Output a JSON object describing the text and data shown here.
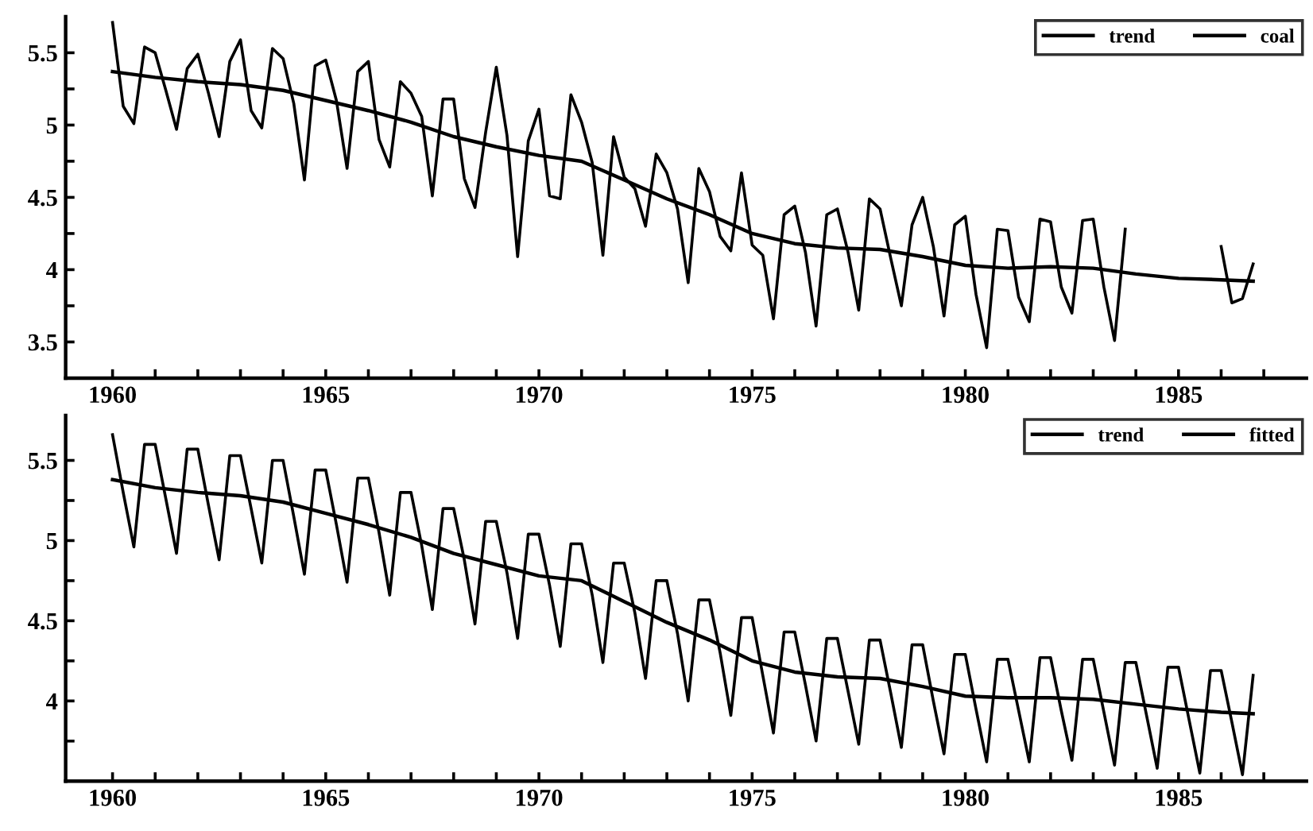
{
  "chart_data": [
    {
      "type": "line",
      "x": [
        1960,
        1960.25,
        1960.5,
        1960.75,
        1961,
        1961.25,
        1961.5,
        1961.75,
        1962,
        1962.25,
        1962.5,
        1962.75,
        1963,
        1963.25,
        1963.5,
        1963.75,
        1964,
        1964.25,
        1964.5,
        1964.75,
        1965,
        1965.25,
        1965.5,
        1965.75,
        1966,
        1966.25,
        1966.5,
        1966.75,
        1967,
        1967.25,
        1967.5,
        1967.75,
        1968,
        1968.25,
        1968.5,
        1968.75,
        1969,
        1969.25,
        1969.5,
        1969.75,
        1970,
        1970.25,
        1970.5,
        1970.75,
        1971,
        1971.25,
        1971.5,
        1971.75,
        1972,
        1972.25,
        1972.5,
        1972.75,
        1973,
        1973.25,
        1973.5,
        1973.75,
        1974,
        1974.25,
        1974.5,
        1974.75,
        1975,
        1975.25,
        1975.5,
        1975.75,
        1976,
        1976.25,
        1976.5,
        1976.75,
        1977,
        1977.25,
        1977.5,
        1977.75,
        1978,
        1978.25,
        1978.5,
        1978.75,
        1979,
        1979.25,
        1979.5,
        1979.75,
        1980,
        1980.25,
        1980.5,
        1980.75,
        1981,
        1981.25,
        1981.5,
        1981.75,
        1982,
        1982.25,
        1982.5,
        1982.75,
        1983,
        1983.25,
        1983.5,
        1983.75,
        1984,
        1984.25,
        1984.5,
        1984.75,
        1985,
        1985.25,
        1985.5,
        1985.75,
        1986,
        1986.25,
        1986.5,
        1986.75
      ],
      "series": [
        {
          "name": "trend",
          "color": "#000000",
          "x": [
            1960,
            1961,
            1962,
            1963,
            1964,
            1965,
            1966,
            1967,
            1968,
            1969,
            1970,
            1971,
            1972,
            1973,
            1974,
            1975,
            1976,
            1977,
            1978,
            1979,
            1980,
            1981,
            1982,
            1983,
            1984,
            1985,
            1986,
            1986.75
          ],
          "values": [
            5.37,
            5.33,
            5.3,
            5.28,
            5.24,
            5.17,
            5.1,
            5.02,
            4.92,
            4.85,
            4.79,
            4.75,
            4.62,
            4.49,
            4.38,
            4.25,
            4.18,
            4.15,
            4.14,
            4.09,
            4.03,
            4.01,
            4.02,
            4.01,
            3.97,
            3.94,
            3.93,
            3.92
          ]
        },
        {
          "name": "coal",
          "color": "#000000",
          "values": [
            5.71,
            5.13,
            5.01,
            5.54,
            5.5,
            5.24,
            4.97,
            5.39,
            5.49,
            5.22,
            4.92,
            5.44,
            5.59,
            5.1,
            4.98,
            5.53,
            5.46,
            5.15,
            4.62,
            5.41,
            5.45,
            5.17,
            4.7,
            5.37,
            5.44,
            4.9,
            4.71,
            5.3,
            5.22,
            5.06,
            4.51,
            5.18,
            5.18,
            4.63,
            4.43,
            4.95,
            5.4,
            4.93,
            4.09,
            4.89,
            5.11,
            4.51,
            4.49,
            5.21,
            5.02,
            4.74,
            4.1,
            4.92,
            4.64,
            4.56,
            4.3,
            4.8,
            4.67,
            4.42,
            3.91,
            4.7,
            4.54,
            4.23,
            4.13,
            4.67,
            4.17,
            4.1,
            3.66,
            4.38,
            4.44,
            4.12,
            3.61,
            4.38,
            4.42,
            4.12,
            3.72,
            4.49,
            4.42,
            4.08,
            3.75,
            4.31,
            4.5,
            4.16,
            3.68,
            4.31,
            4.37,
            3.83,
            3.46,
            4.28,
            4.27,
            3.81,
            3.64,
            4.35,
            4.33,
            3.88,
            3.7,
            4.34,
            4.35,
            3.88,
            3.51,
            4.28,
            null,
            null,
            null,
            null,
            null,
            null,
            null,
            null,
            4.16,
            3.77,
            3.8,
            4.04
          ]
        }
      ],
      "xlim": [
        1958.9,
        1988
      ],
      "ylim": [
        3.25,
        5.75
      ],
      "xticks": [
        1960,
        {
          "value": 1961,
          "label": null
        },
        {
          "value": 1962,
          "label": null
        },
        {
          "value": 1963,
          "label": null
        },
        {
          "value": 1964,
          "label": null
        },
        1965,
        {
          "value": 1966,
          "label": null
        },
        {
          "value": 1967,
          "label": null
        },
        {
          "value": 1968,
          "label": null
        },
        {
          "value": 1969,
          "label": null
        },
        1970,
        {
          "value": 1971,
          "label": null
        },
        {
          "value": 1972,
          "label": null
        },
        {
          "value": 1973,
          "label": null
        },
        {
          "value": 1974,
          "label": null
        },
        1975,
        {
          "value": 1976,
          "label": null
        },
        {
          "value": 1977,
          "label": null
        },
        {
          "value": 1978,
          "label": null
        },
        {
          "value": 1979,
          "label": null
        },
        1980,
        {
          "value": 1981,
          "label": null
        },
        {
          "value": 1982,
          "label": null
        },
        {
          "value": 1983,
          "label": null
        },
        {
          "value": 1984,
          "label": null
        },
        1985,
        {
          "value": 1986,
          "label": null
        },
        {
          "value": 1987,
          "label": null
        }
      ],
      "yticks": [
        3.5,
        {
          "value": 3.75,
          "label": null
        },
        4,
        {
          "value": 4.25,
          "label": null
        },
        4.5,
        {
          "value": 4.75,
          "label": null
        },
        5,
        {
          "value": 5.25,
          "label": null
        },
        5.5
      ],
      "legend": "top right"
    },
    {
      "type": "line",
      "x": [
        1960,
        1960.25,
        1960.5,
        1960.75,
        1961,
        1961.25,
        1961.5,
        1961.75,
        1962,
        1962.25,
        1962.5,
        1962.75,
        1963,
        1963.25,
        1963.5,
        1963.75,
        1964,
        1964.25,
        1964.5,
        1964.75,
        1965,
        1965.25,
        1965.5,
        1965.75,
        1966,
        1966.25,
        1966.5,
        1966.75,
        1967,
        1967.25,
        1967.5,
        1967.75,
        1968,
        1968.25,
        1968.5,
        1968.75,
        1969,
        1969.25,
        1969.5,
        1969.75,
        1970,
        1970.25,
        1970.5,
        1970.75,
        1971,
        1971.25,
        1971.5,
        1971.75,
        1972,
        1972.25,
        1972.5,
        1972.75,
        1973,
        1973.25,
        1973.5,
        1973.75,
        1974,
        1974.25,
        1974.5,
        1974.75,
        1975,
        1975.25,
        1975.5,
        1975.75,
        1976,
        1976.25,
        1976.5,
        1976.75,
        1977,
        1977.25,
        1977.5,
        1977.75,
        1978,
        1978.25,
        1978.5,
        1978.75,
        1979,
        1979.25,
        1979.5,
        1979.75,
        1980,
        1980.25,
        1980.5,
        1980.75,
        1981,
        1981.25,
        1981.5,
        1981.75,
        1982,
        1982.25,
        1982.5,
        1982.75,
        1983,
        1983.25,
        1983.5,
        1983.75,
        1984,
        1984.25,
        1984.5,
        1984.75,
        1985,
        1985.25,
        1985.5,
        1985.75,
        1986,
        1986.25,
        1986.5,
        1986.75
      ],
      "series": [
        {
          "name": "trend",
          "color": "#000000",
          "x": [
            1960,
            1961,
            1962,
            1963,
            1964,
            1965,
            1966,
            1967,
            1968,
            1969,
            1970,
            1971,
            1972,
            1973,
            1974,
            1975,
            1976,
            1977,
            1978,
            1979,
            1980,
            1981,
            1982,
            1983,
            1984,
            1985,
            1986,
            1986.75
          ],
          "values": [
            5.38,
            5.33,
            5.3,
            5.28,
            5.24,
            5.17,
            5.1,
            5.02,
            4.92,
            4.85,
            4.78,
            4.75,
            4.62,
            4.49,
            4.38,
            4.25,
            4.18,
            4.15,
            4.14,
            4.09,
            4.03,
            4.02,
            4.02,
            4.01,
            3.98,
            3.95,
            3.93,
            3.92
          ]
        },
        {
          "name": "fitted",
          "color": "#000000",
          "values": [
            5.66,
            5.3,
            4.96,
            5.6,
            5.6,
            5.26,
            4.92,
            5.57,
            5.57,
            5.22,
            4.88,
            5.53,
            5.53,
            5.2,
            4.86,
            5.5,
            5.5,
            5.15,
            4.79,
            5.44,
            5.44,
            5.1,
            4.74,
            5.39,
            5.39,
            5.05,
            4.66,
            5.3,
            5.3,
            4.97,
            4.57,
            5.2,
            5.2,
            4.88,
            4.48,
            5.12,
            5.12,
            4.8,
            4.39,
            5.04,
            5.04,
            4.72,
            4.34,
            4.98,
            4.98,
            4.66,
            4.24,
            4.86,
            4.86,
            4.55,
            4.14,
            4.75,
            4.75,
            4.42,
            4.0,
            4.63,
            4.63,
            4.3,
            3.91,
            4.52,
            4.52,
            4.16,
            3.8,
            4.43,
            4.43,
            4.1,
            3.75,
            4.39,
            4.39,
            4.06,
            3.73,
            4.38,
            4.38,
            4.05,
            3.71,
            4.35,
            4.35,
            4.0,
            3.67,
            4.29,
            4.29,
            3.95,
            3.62,
            4.26,
            4.26,
            3.94,
            3.62,
            4.27,
            4.27,
            3.94,
            3.63,
            4.26,
            4.26,
            3.93,
            3.6,
            4.24,
            4.24,
            3.91,
            3.58,
            4.21,
            4.21,
            3.88,
            3.55,
            4.19,
            4.19,
            3.87,
            3.54,
            4.16
          ]
        }
      ],
      "xlim": [
        1958.9,
        1988
      ],
      "ylim": [
        3.5,
        5.78
      ],
      "xticks": [
        1960,
        {
          "value": 1961,
          "label": null
        },
        {
          "value": 1962,
          "label": null
        },
        {
          "value": 1963,
          "label": null
        },
        {
          "value": 1964,
          "label": null
        },
        1965,
        {
          "value": 1966,
          "label": null
        },
        {
          "value": 1967,
          "label": null
        },
        {
          "value": 1968,
          "label": null
        },
        {
          "value": 1969,
          "label": null
        },
        1970,
        {
          "value": 1971,
          "label": null
        },
        {
          "value": 1972,
          "label": null
        },
        {
          "value": 1973,
          "label": null
        },
        {
          "value": 1974,
          "label": null
        },
        1975,
        {
          "value": 1976,
          "label": null
        },
        {
          "value": 1977,
          "label": null
        },
        {
          "value": 1978,
          "label": null
        },
        {
          "value": 1979,
          "label": null
        },
        1980,
        {
          "value": 1981,
          "label": null
        },
        {
          "value": 1982,
          "label": null
        },
        {
          "value": 1983,
          "label": null
        },
        {
          "value": 1984,
          "label": null
        },
        1985,
        {
          "value": 1986,
          "label": null
        },
        {
          "value": 1987,
          "label": null
        }
      ],
      "yticks": [
        {
          "value": 3.75,
          "label": null
        },
        4,
        {
          "value": 4.25,
          "label": null
        },
        4.5,
        {
          "value": 4.75,
          "label": null
        },
        5,
        {
          "value": 5.25,
          "label": null
        },
        5.5
      ],
      "legend": "top right"
    }
  ]
}
